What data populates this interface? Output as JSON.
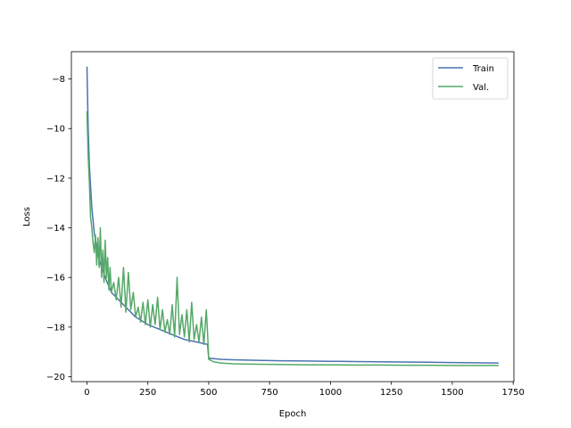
{
  "chart_data": {
    "type": "line",
    "title": "",
    "xlabel": "Epoch",
    "ylabel": "Loss",
    "xlim": [
      -64,
      1753
    ],
    "ylim": [
      -20.2,
      -6.9
    ],
    "x_ticks": [
      0,
      250,
      500,
      750,
      1000,
      1250,
      1500,
      1750
    ],
    "x_tick_labels": [
      "0",
      "250",
      "500",
      "750",
      "1000",
      "1250",
      "1500",
      "1750"
    ],
    "y_ticks": [
      -20,
      -18,
      -16,
      -14,
      -12,
      -10,
      -8
    ],
    "y_tick_labels": [
      "−20",
      "−18",
      "−16",
      "−14",
      "−12",
      "−10",
      "−8"
    ],
    "grid": false,
    "legend_position": "upper right",
    "series": [
      {
        "name": "Train",
        "color": "#4c72b0",
        "x": [
          0,
          5,
          10,
          20,
          30,
          50,
          75,
          100,
          150,
          200,
          250,
          300,
          350,
          400,
          450,
          495,
          500,
          550,
          600,
          700,
          800,
          900,
          1000,
          1100,
          1200,
          1300,
          1400,
          1500,
          1600,
          1690
        ],
        "y": [
          -7.5,
          -10.0,
          -11.5,
          -13.2,
          -14.2,
          -15.3,
          -16.0,
          -16.6,
          -17.1,
          -17.6,
          -17.9,
          -18.1,
          -18.3,
          -18.5,
          -18.6,
          -18.7,
          -19.25,
          -19.3,
          -19.32,
          -19.34,
          -19.36,
          -19.37,
          -19.38,
          -19.39,
          -19.4,
          -19.41,
          -19.42,
          -19.43,
          -19.44,
          -19.45
        ]
      },
      {
        "name": "Val.",
        "color": "#55a868",
        "x": [
          0,
          5,
          10,
          15,
          20,
          25,
          30,
          35,
          40,
          45,
          50,
          55,
          60,
          65,
          70,
          75,
          80,
          85,
          90,
          95,
          100,
          110,
          120,
          130,
          140,
          150,
          160,
          170,
          180,
          190,
          200,
          210,
          220,
          230,
          240,
          250,
          260,
          270,
          280,
          290,
          300,
          310,
          320,
          330,
          340,
          350,
          360,
          370,
          380,
          390,
          400,
          410,
          420,
          430,
          440,
          450,
          460,
          470,
          480,
          490,
          495,
          500,
          520,
          550,
          600,
          700,
          800,
          900,
          1000,
          1100,
          1200,
          1300,
          1400,
          1500,
          1600,
          1690
        ],
        "y": [
          -9.3,
          -11.1,
          -12.2,
          -13.6,
          -14.0,
          -14.6,
          -15.0,
          -14.3,
          -15.5,
          -14.4,
          -15.6,
          -14.0,
          -16.0,
          -14.9,
          -16.2,
          -14.5,
          -16.0,
          -15.2,
          -16.5,
          -15.6,
          -16.6,
          -16.2,
          -16.9,
          -16.0,
          -17.2,
          -15.6,
          -17.4,
          -15.8,
          -17.3,
          -16.6,
          -17.6,
          -17.2,
          -17.8,
          -17.0,
          -17.9,
          -16.9,
          -18.0,
          -17.1,
          -17.9,
          -16.8,
          -18.1,
          -17.3,
          -18.2,
          -17.7,
          -18.3,
          -17.1,
          -18.4,
          -16.0,
          -18.3,
          -17.5,
          -18.4,
          -17.3,
          -18.6,
          -17.0,
          -18.5,
          -17.9,
          -18.6,
          -17.6,
          -18.7,
          -17.3,
          -18.2,
          -19.3,
          -19.4,
          -19.45,
          -19.48,
          -19.5,
          -19.51,
          -19.52,
          -19.52,
          -19.53,
          -19.53,
          -19.54,
          -19.54,
          -19.55,
          -19.55,
          -19.55
        ]
      }
    ]
  }
}
